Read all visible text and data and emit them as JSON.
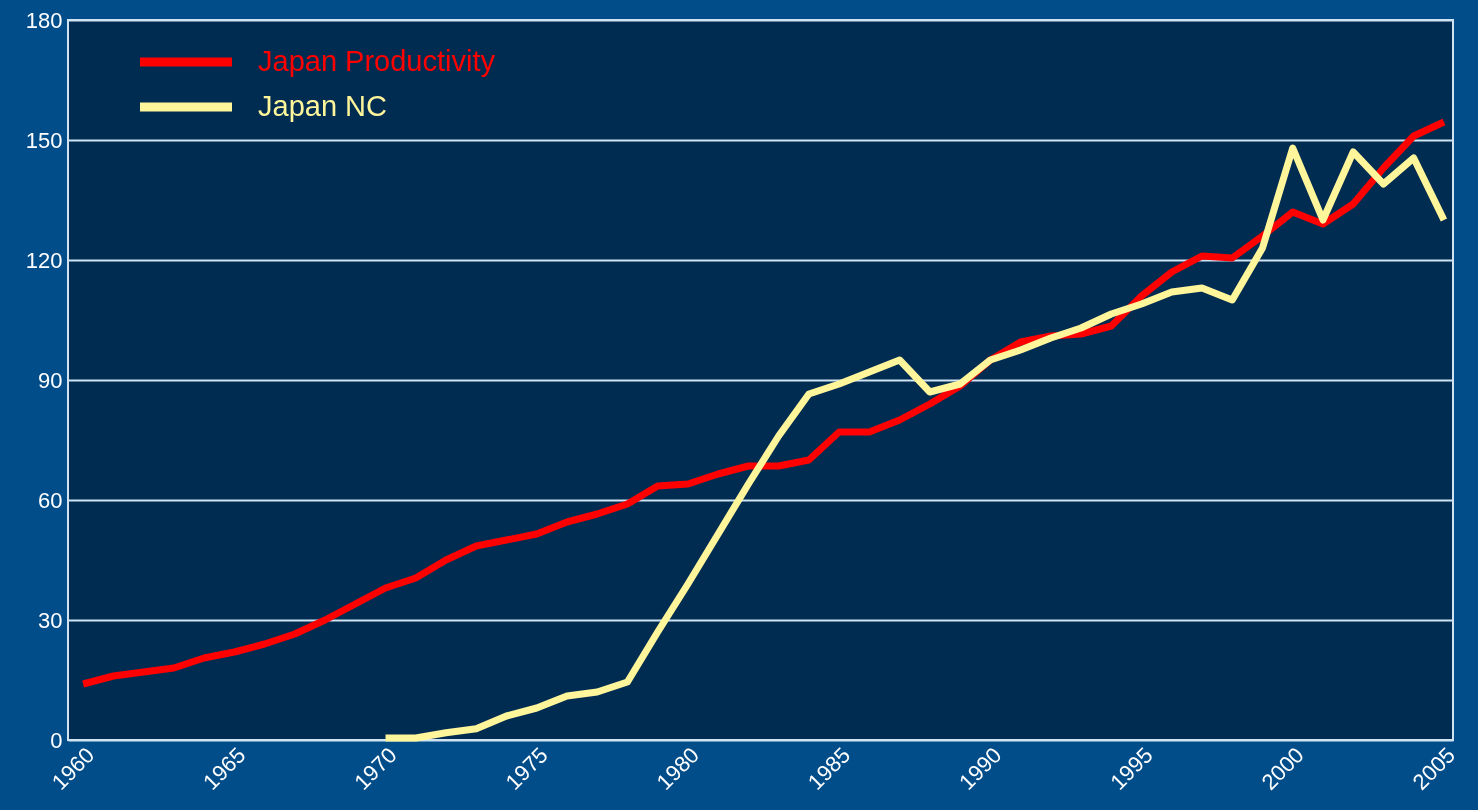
{
  "chart_data": {
    "type": "line",
    "x": [
      1960,
      1961,
      1962,
      1963,
      1964,
      1965,
      1966,
      1967,
      1968,
      1969,
      1970,
      1971,
      1972,
      1973,
      1974,
      1975,
      1976,
      1977,
      1978,
      1979,
      1980,
      1981,
      1982,
      1983,
      1984,
      1985,
      1986,
      1987,
      1988,
      1989,
      1990,
      1991,
      1992,
      1993,
      1994,
      1995,
      1996,
      1997,
      1998,
      1999,
      2000,
      2001,
      2002,
      2003,
      2004,
      2005
    ],
    "series": [
      {
        "name": "Japan Productivity",
        "color": "#ff0000",
        "values": [
          14,
          16,
          17,
          18,
          20.5,
          22,
          24,
          26.5,
          30,
          34,
          38,
          40.5,
          45,
          48.5,
          50,
          51.5,
          54.5,
          56.5,
          59,
          63.5,
          64,
          66.5,
          68.5,
          68.5,
          70,
          77,
          77,
          80,
          84,
          88.5,
          95,
          99.5,
          101,
          101.5,
          103.5,
          111,
          117,
          121,
          120.5,
          126,
          132,
          129,
          134,
          143,
          151,
          154.5
        ]
      },
      {
        "name": "Japan NC",
        "color": "#fff59a",
        "values": [
          null,
          null,
          null,
          null,
          null,
          null,
          null,
          null,
          null,
          null,
          0.5,
          0.5,
          1.8,
          2.8,
          6,
          8,
          11,
          12,
          14.5,
          27,
          39,
          51.5,
          64,
          76,
          86.5,
          89,
          92,
          95,
          87,
          89,
          95,
          97.5,
          100.5,
          103,
          106.5,
          109,
          112,
          113,
          110,
          123,
          148,
          130,
          147,
          139,
          145.5,
          130
        ]
      }
    ],
    "xlim": [
      1959.5,
      2005.3
    ],
    "xticks": [
      1960,
      1965,
      1970,
      1975,
      1980,
      1985,
      1990,
      1995,
      2000,
      2005
    ],
    "ylim": [
      0,
      180
    ],
    "yticks": [
      0,
      30,
      60,
      90,
      120,
      150,
      180
    ],
    "grid": "y",
    "legend": "top left",
    "line_style": "solid",
    "marker": "none"
  }
}
